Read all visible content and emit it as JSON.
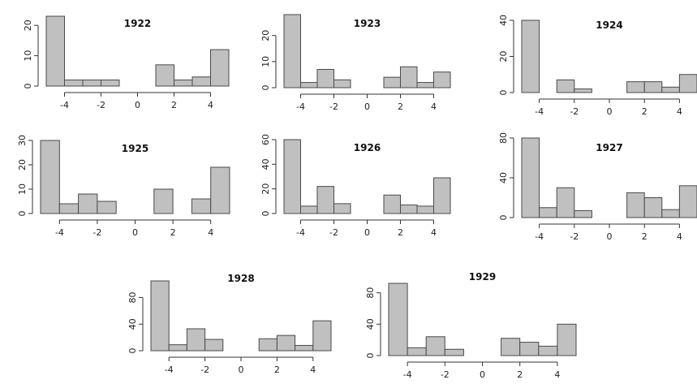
{
  "chart_data": [
    {
      "type": "bar",
      "title": "1922",
      "x": [
        -4.5,
        -3.5,
        -2.5,
        -1.5,
        -0.5,
        0.5,
        1.5,
        2.5,
        3.5,
        4.5
      ],
      "values": [
        23,
        2,
        2,
        2,
        0,
        0,
        7,
        2,
        3,
        12
      ],
      "xlim": [
        -5,
        5
      ],
      "ylim": [
        0,
        23
      ],
      "xticks": [
        "-4",
        "-2",
        "0",
        "2",
        "4"
      ],
      "yticks": [
        "0",
        "10",
        "20"
      ]
    },
    {
      "type": "bar",
      "title": "1923",
      "x": [
        -4.5,
        -3.5,
        -2.5,
        -1.5,
        -0.5,
        0.5,
        1.5,
        2.5,
        3.5,
        4.5
      ],
      "values": [
        28,
        2,
        7,
        3,
        0,
        0,
        4,
        8,
        2,
        6
      ],
      "xlim": [
        -5,
        5
      ],
      "ylim": [
        0,
        28
      ],
      "xticks": [
        "-4",
        "-2",
        "0",
        "2",
        "4"
      ],
      "yticks": [
        "0",
        "10",
        "20"
      ]
    },
    {
      "type": "bar",
      "title": "1924",
      "x": [
        -4.5,
        -3.5,
        -2.5,
        -1.5,
        -0.5,
        0.5,
        1.5,
        2.5,
        3.5,
        4.5
      ],
      "values": [
        40,
        0,
        7,
        2,
        0,
        0,
        6,
        6,
        3,
        10
      ],
      "xlim": [
        -5,
        5
      ],
      "ylim": [
        0,
        40
      ],
      "xticks": [
        "-4",
        "-2",
        "0",
        "2",
        "4"
      ],
      "yticks": [
        "0",
        "20",
        "40"
      ]
    },
    {
      "type": "bar",
      "title": "1925",
      "x": [
        -4.5,
        -3.5,
        -2.5,
        -1.5,
        -0.5,
        0.5,
        1.5,
        2.5,
        3.5,
        4.5
      ],
      "values": [
        30,
        4,
        8,
        5,
        0,
        0,
        10,
        0,
        6,
        19
      ],
      "xlim": [
        -5,
        5
      ],
      "ylim": [
        0,
        30
      ],
      "xticks": [
        "-4",
        "-2",
        "0",
        "2",
        "4"
      ],
      "yticks": [
        "0",
        "10",
        "20",
        "30"
      ]
    },
    {
      "type": "bar",
      "title": "1926",
      "x": [
        -4.5,
        -3.5,
        -2.5,
        -1.5,
        -0.5,
        0.5,
        1.5,
        2.5,
        3.5,
        4.5
      ],
      "values": [
        60,
        6,
        22,
        8,
        0,
        0,
        15,
        7,
        6,
        29
      ],
      "xlim": [
        -5,
        5
      ],
      "ylim": [
        0,
        60
      ],
      "xticks": [
        "-4",
        "-2",
        "0",
        "2",
        "4"
      ],
      "yticks": [
        "0",
        "20",
        "40",
        "60"
      ]
    },
    {
      "type": "bar",
      "title": "1927",
      "x": [
        -4.5,
        -3.5,
        -2.5,
        -1.5,
        -0.5,
        0.5,
        1.5,
        2.5,
        3.5,
        4.5
      ],
      "values": [
        80,
        10,
        30,
        7,
        0,
        0,
        25,
        20,
        8,
        32
      ],
      "xlim": [
        -5,
        5
      ],
      "ylim": [
        0,
        80
      ],
      "xticks": [
        "-4",
        "-2",
        "0",
        "2",
        "4"
      ],
      "yticks": [
        "0",
        "40",
        "80"
      ]
    },
    {
      "type": "bar",
      "title": "1928",
      "x": [
        -4.5,
        -3.5,
        -2.5,
        -1.5,
        -0.5,
        0.5,
        1.5,
        2.5,
        3.5,
        4.5
      ],
      "values": [
        105,
        9,
        33,
        17,
        0,
        0,
        18,
        23,
        8,
        45
      ],
      "xlim": [
        -5,
        5
      ],
      "ylim": [
        0,
        105
      ],
      "xticks": [
        "-4",
        "-2",
        "0",
        "2",
        "4"
      ],
      "yticks": [
        "0",
        "40",
        "80"
      ]
    },
    {
      "type": "bar",
      "title": "1929",
      "x": [
        -4.5,
        -3.5,
        -2.5,
        -1.5,
        -0.5,
        0.5,
        1.5,
        2.5,
        3.5,
        4.5
      ],
      "values": [
        92,
        10,
        24,
        8,
        0,
        0,
        22,
        17,
        12,
        40
      ],
      "xlim": [
        -5,
        5
      ],
      "ylim": [
        0,
        92
      ],
      "xticks": [
        "-4",
        "-2",
        "0",
        "2",
        "4"
      ],
      "yticks": [
        "0",
        "40",
        "80"
      ]
    }
  ]
}
